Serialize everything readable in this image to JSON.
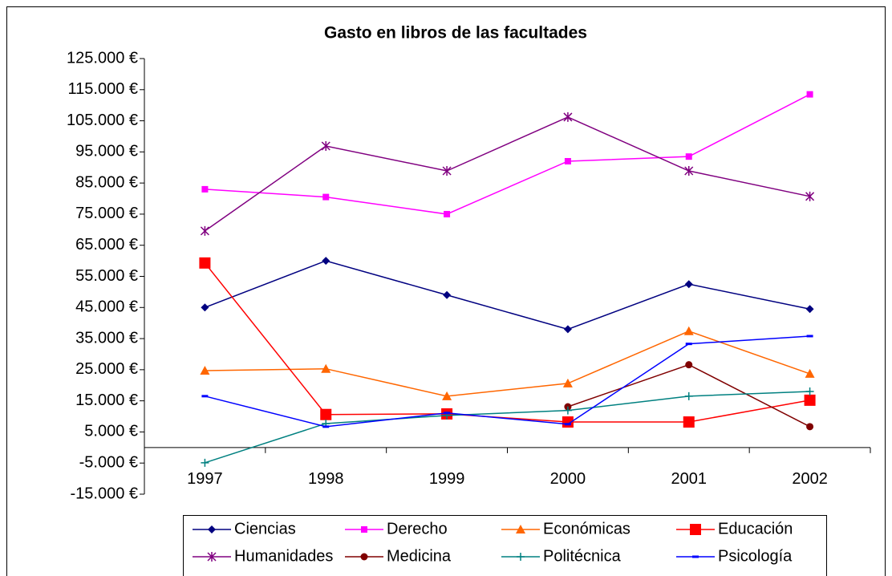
{
  "chart_data": {
    "type": "line",
    "title": "Gasto en libros de las facultades",
    "categories": [
      "1997",
      "1998",
      "1999",
      "2000",
      "2001",
      "2002"
    ],
    "ylim": [
      -15000,
      125000
    ],
    "yticks": [
      {
        "value": -15000,
        "label": "-15.000 €"
      },
      {
        "value": -5000,
        "label": "-5.000 €"
      },
      {
        "value": 5000,
        "label": "5.000 €"
      },
      {
        "value": 15000,
        "label": "15.000 €"
      },
      {
        "value": 25000,
        "label": "25.000 €"
      },
      {
        "value": 35000,
        "label": "35.000 €"
      },
      {
        "value": 45000,
        "label": "45.000 €"
      },
      {
        "value": 55000,
        "label": "55.000 €"
      },
      {
        "value": 65000,
        "label": "65.000 €"
      },
      {
        "value": 75000,
        "label": "75.000 €"
      },
      {
        "value": 85000,
        "label": "85.000 €"
      },
      {
        "value": 95000,
        "label": "95.000 €"
      },
      {
        "value": 105000,
        "label": "105.000 €"
      },
      {
        "value": 115000,
        "label": "115.000 €"
      },
      {
        "value": 125000,
        "label": "125.000 €"
      }
    ],
    "grid": false,
    "legend": "bottom",
    "series": [
      {
        "name": "Ciencias",
        "color": "#000080",
        "marker": "diamond",
        "values": [
          45000,
          60000,
          49000,
          38000,
          52500,
          44500
        ]
      },
      {
        "name": "Derecho",
        "color": "#ff00ff",
        "marker": "square",
        "values": [
          83000,
          80500,
          75000,
          92000,
          93500,
          113500
        ]
      },
      {
        "name": "Económicas",
        "color": "#ff6600",
        "marker": "triangle",
        "values": [
          24700,
          25300,
          16500,
          20600,
          37400,
          23700
        ]
      },
      {
        "name": "Educación",
        "color": "#ff0000",
        "marker": "bigsquare",
        "values": [
          59300,
          10600,
          10800,
          8200,
          8200,
          15200
        ]
      },
      {
        "name": "Humanidades",
        "color": "#800080",
        "marker": "star",
        "values": [
          69600,
          96900,
          88900,
          106200,
          88900,
          80700
        ]
      },
      {
        "name": "Medicina",
        "color": "#800000",
        "marker": "circle",
        "values": [
          null,
          null,
          null,
          13100,
          26600,
          6700
        ]
      },
      {
        "name": "Politécnica",
        "color": "#008080",
        "marker": "plus",
        "values": [
          -4900,
          7700,
          10300,
          11900,
          16500,
          18000
        ]
      },
      {
        "name": "Psicología",
        "color": "#0000ff",
        "marker": "dash",
        "values": [
          16500,
          6700,
          11100,
          7500,
          33300,
          35800
        ]
      }
    ]
  }
}
